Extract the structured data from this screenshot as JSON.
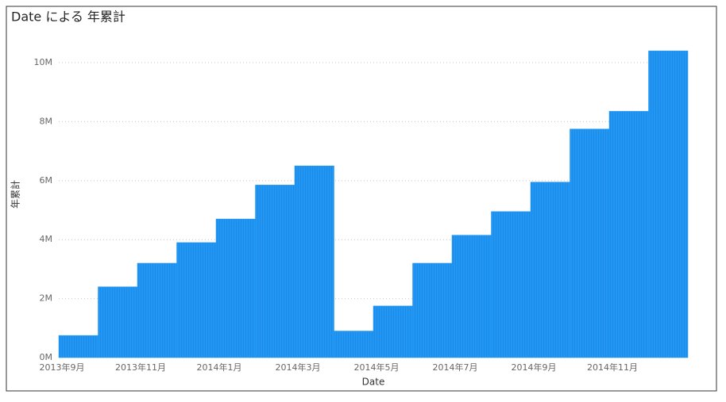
{
  "chart_data": {
    "type": "bar",
    "title": "Date による 年累計",
    "x_label": "Date",
    "y_label": "年累計",
    "categories": [
      "2013年9月",
      null,
      "2013年11月",
      null,
      "2014年1月",
      null,
      "2014年3月",
      null,
      "2014年5月",
      null,
      "2014年7月",
      null,
      "2014年9月",
      null,
      "2014年11月",
      null
    ],
    "values": [
      750000,
      2400000,
      3200000,
      3900000,
      4700000,
      5850000,
      6500000,
      900000,
      1750000,
      3200000,
      4150000,
      4950000,
      5950000,
      7750000,
      8350000,
      10400000
    ],
    "color": "#2196f3",
    "ylim": [
      0,
      10400000
    ],
    "yticks": [
      {
        "value": 0,
        "label": "0M"
      },
      {
        "value": 2000000,
        "label": "2M"
      },
      {
        "value": 4000000,
        "label": "4M"
      },
      {
        "value": 6000000,
        "label": "6M"
      },
      {
        "value": 8000000,
        "label": "8M"
      },
      {
        "value": 10000000,
        "label": "10M"
      }
    ],
    "grid": true
  }
}
